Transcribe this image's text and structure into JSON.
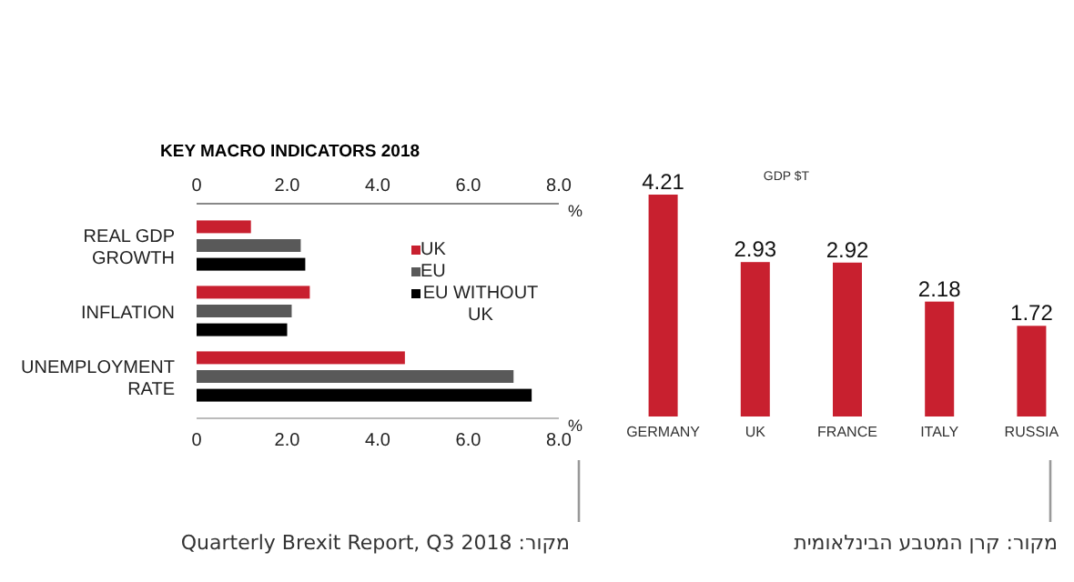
{
  "chart_data": [
    {
      "type": "bar",
      "orientation": "horizontal",
      "title": "KEY MACRO INDICATORS 2018",
      "categories": [
        "REAL GDP GROWTH",
        "INFLATION",
        "UNEMPLOYMENT RATE"
      ],
      "series": [
        {
          "name": "UK",
          "color": "#c8202f",
          "values": [
            1.2,
            2.5,
            4.6
          ]
        },
        {
          "name": "EU",
          "color": "#595959",
          "values": [
            2.3,
            2.1,
            7.0
          ]
        },
        {
          "name": "EU WITHOUT UK",
          "color": "#000000",
          "values": [
            2.4,
            2.0,
            7.4
          ]
        }
      ],
      "xlim": [
        0,
        8
      ],
      "xticks": [
        0,
        {
          "value": 2,
          "label": "2.0"
        },
        {
          "value": 4,
          "label": "4.0"
        },
        {
          "value": 6,
          "label": "6.0"
        },
        {
          "value": 8,
          "label": "8.0"
        }
      ],
      "xlabel": "%",
      "x2lim": [
        0,
        8
      ],
      "x2ticks": [
        0,
        {
          "value": 2,
          "label": "2.0"
        },
        {
          "value": 4,
          "label": "4.0"
        },
        {
          "value": 6,
          "label": "6.0"
        },
        {
          "value": 8,
          "label": "8.0"
        }
      ],
      "x2label": "%",
      "legend": "right",
      "annotations": [
        "מקור: Quarterly Brexit Report, Q3 2018"
      ]
    },
    {
      "type": "bar",
      "title": "GDP $T",
      "categories": [
        "GERMANY",
        "UK",
        "FRANCE",
        "ITALY",
        "RUSSIA"
      ],
      "values": [
        4.21,
        2.93,
        2.92,
        2.18,
        1.72
      ],
      "color": "#c8202f",
      "data_labels": true,
      "annotations": [
        "מקור: קרן המטבע הבינלאומית"
      ]
    }
  ]
}
